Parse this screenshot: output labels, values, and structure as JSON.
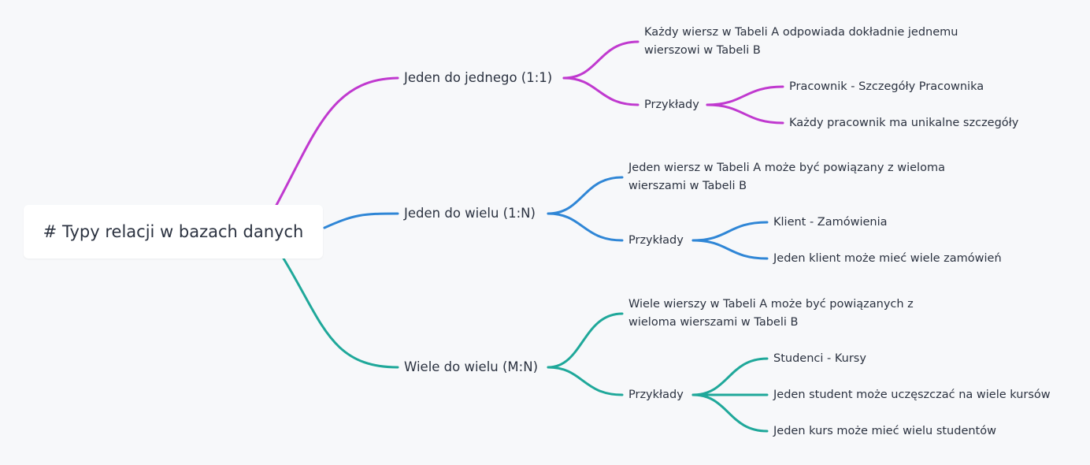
{
  "root": {
    "label": "# Typy relacji w bazach danych"
  },
  "colors": {
    "one_to_one": "#c039cf",
    "one_to_many": "#2f86d6",
    "many_to_many": "#1fa89a",
    "background": "#f7f8fa"
  },
  "branches": [
    {
      "label": "Jeden do jednego (1:1)",
      "description": [
        "Każdy wiersz w Tabeli A odpowiada dokładnie jednemu",
        "wierszowi w Tabeli B"
      ],
      "examples_label": "Przykłady",
      "examples": [
        "Pracownik - Szczegóły Pracownika",
        "Każdy pracownik ma unikalne szczegóły"
      ]
    },
    {
      "label": "Jeden do wielu (1:N)",
      "description": [
        "Jeden wiersz w Tabeli A może być powiązany z wieloma",
        "wierszami w Tabeli B"
      ],
      "examples_label": "Przykłady",
      "examples": [
        "Klient - Zamówienia",
        "Jeden klient może mieć wiele zamówień"
      ]
    },
    {
      "label": "Wiele do wielu (M:N)",
      "description": [
        "Wiele wierszy w Tabeli A może być powiązanych z",
        "wieloma wierszami w Tabeli B"
      ],
      "examples_label": "Przykłady",
      "examples": [
        "Studenci - Kursy",
        "Jeden student może uczęszczać na wiele kursów",
        "Jeden kurs może mieć wielu studentów"
      ]
    }
  ]
}
